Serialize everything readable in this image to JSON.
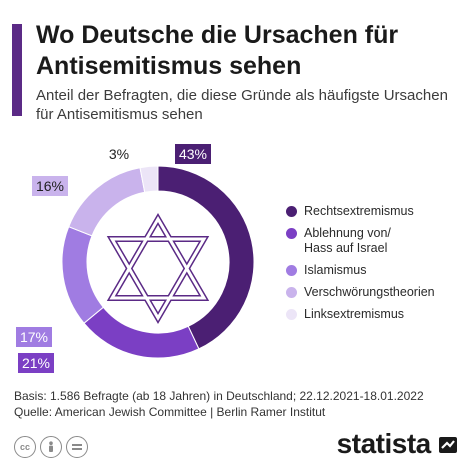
{
  "header": {
    "title": "Wo Deutsche die Ursachen für Antisemitismus sehen",
    "subtitle": "Anteil der Befragten, die diese Gründe als häufigste Ursachen für Antisemitismus sehen"
  },
  "chart_data": {
    "type": "pie",
    "donut": true,
    "categories": [
      "Rechtsextremismus",
      "Ablehnung von/ Hass auf Israel",
      "Islamismus",
      "Verschwörungstheorien",
      "Linksextremismus"
    ],
    "values": [
      43,
      21,
      17,
      16,
      3
    ],
    "value_labels": [
      "43%",
      "21%",
      "17%",
      "16%",
      "3%"
    ],
    "colors": [
      "#4b1f73",
      "#7b3fc4",
      "#a07ce2",
      "#c9b3ec",
      "#ece5f7"
    ],
    "legend_position": "right",
    "center_icon": "star-of-david-icon"
  },
  "legend": {
    "items": [
      {
        "label": "Rechtsextremismus",
        "color": "#4b1f73"
      },
      {
        "label": "Ablehnung von/\nHass auf Israel",
        "color": "#7b3fc4"
      },
      {
        "label": "Islamismus",
        "color": "#a07ce2"
      },
      {
        "label": "Verschwörungstheorien",
        "color": "#c9b3ec"
      },
      {
        "label": "Linksextremismus",
        "color": "#ece5f7"
      }
    ]
  },
  "footer": {
    "basis": "Basis: 1.586 Befragte (ab 18 Jahren) in Deutschland; 22.12.2021-18.01.2022",
    "source": "Quelle: American Jewish Committee | Berlin Ramer Institut"
  },
  "license_icons": [
    "cc-icon",
    "person-icon",
    "equals-icon"
  ],
  "brand": {
    "name": "statista",
    "color": "#1a1a1a"
  },
  "accent_color": "#5b2a86"
}
